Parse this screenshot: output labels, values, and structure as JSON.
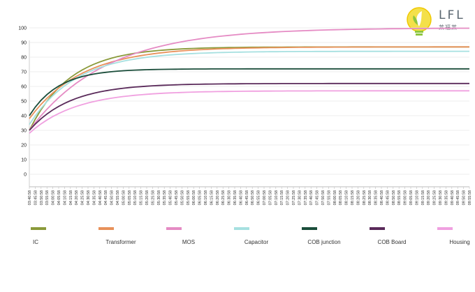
{
  "logo": {
    "text": "LFL",
    "subtext": "莱福莱"
  },
  "chart_data": {
    "type": "line",
    "title": "",
    "xlabel": "",
    "ylabel": "",
    "ylim": [
      0,
      100
    ],
    "yticks": [
      0,
      10,
      20,
      30,
      40,
      50,
      60,
      70,
      80,
      90,
      100
    ],
    "grid": true,
    "legend_position": "bottom",
    "x": [
      "03:40:58",
      "03:45:58",
      "03:50:58",
      "03:55:58",
      "04:00:58",
      "04:05:58",
      "04:10:58",
      "04:15:58",
      "04:20:58",
      "04:25:58",
      "04:30:58",
      "04:35:58",
      "04:40:58",
      "04:45:58",
      "04:50:58",
      "04:55:58",
      "05:00:58",
      "05:05:58",
      "05:10:58",
      "05:15:58",
      "05:20:58",
      "05:25:58",
      "05:30:58",
      "05:35:58",
      "05:40:58",
      "05:45:58",
      "05:50:58",
      "05:55:58",
      "06:00:58",
      "06:05:58",
      "06:10:58",
      "06:15:58",
      "06:20:58",
      "06:25:58",
      "06:30:58",
      "06:35:58",
      "06:40:58",
      "06:45:58",
      "06:50:58",
      "06:55:58",
      "07:00:58",
      "07:05:58",
      "07:10:58",
      "07:15:58",
      "07:20:58",
      "07:25:58",
      "07:30:58",
      "07:35:58",
      "07:40:58",
      "07:45:58",
      "07:50:58",
      "07:55:58",
      "08:00:58",
      "08:05:58",
      "08:10:58",
      "08:15:58",
      "08:20:58",
      "08:25:58",
      "08:30:58",
      "08:35:58",
      "08:40:58",
      "08:45:58",
      "08:50:58",
      "08:55:58",
      "09:00:58",
      "09:05:58",
      "09:10:58",
      "09:15:58",
      "09:20:58",
      "09:25:58",
      "09:30:58",
      "09:35:58",
      "09:40:58",
      "09:45:58",
      "09:50:58",
      "09:55:58"
    ],
    "series": [
      {
        "name": "IC",
        "color": "#8a9a3a",
        "start": 30,
        "end": 87,
        "rate": 7
      },
      {
        "name": "Transformer",
        "color": "#e8915a",
        "start": 38,
        "end": 87,
        "rate": 9
      },
      {
        "name": "MOS",
        "color": "#e58bc4",
        "start": 30,
        "end": 100,
        "rate": 13
      },
      {
        "name": "Capacitor",
        "color": "#a6e0e0",
        "start": 34,
        "end": 84,
        "rate": 8
      },
      {
        "name": "COB junction",
        "color": "#1a4d3a",
        "start": 40,
        "end": 72,
        "rate": 5
      },
      {
        "name": "COB Board",
        "color": "#5a2a5a",
        "start": 30,
        "end": 62,
        "rate": 7
      },
      {
        "name": "Housing",
        "color": "#f0a0e0",
        "start": 28,
        "end": 57,
        "rate": 8
      }
    ]
  }
}
